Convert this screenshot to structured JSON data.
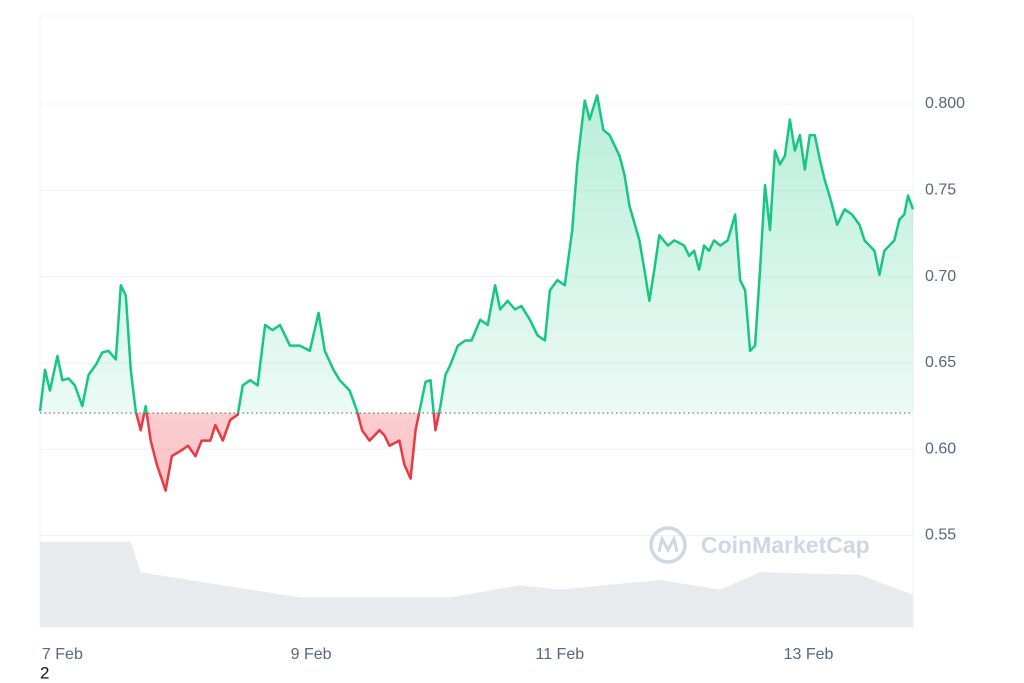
{
  "chart_data": {
    "type": "line",
    "x": [
      6.82,
      6.86,
      6.9,
      6.96,
      7.0,
      7.05,
      7.1,
      7.16,
      7.21,
      7.27,
      7.32,
      7.37,
      7.43,
      7.47,
      7.51,
      7.55,
      7.59,
      7.63,
      7.67,
      7.71,
      7.76,
      7.83,
      7.88,
      7.95,
      8.01,
      8.07,
      8.12,
      8.19,
      8.23,
      8.29,
      8.35,
      8.41,
      8.45,
      8.51,
      8.57,
      8.63,
      8.69,
      8.75,
      8.83,
      8.91,
      8.99,
      9.06,
      9.11,
      9.18,
      9.23,
      9.31,
      9.37,
      9.41,
      9.47,
      9.55,
      9.59,
      9.63,
      9.71,
      9.75,
      9.8,
      9.84,
      9.88,
      9.92,
      9.96,
      10.0,
      10.04,
      10.08,
      10.12,
      10.18,
      10.24,
      10.29,
      10.36,
      10.42,
      10.48,
      10.52,
      10.58,
      10.64,
      10.69,
      10.76,
      10.82,
      10.88,
      10.92,
      10.98,
      11.04,
      11.1,
      11.14,
      11.2,
      11.24,
      11.3,
      11.35,
      11.4,
      11.48,
      11.52,
      11.56,
      11.64,
      11.68,
      11.72,
      11.76,
      11.8,
      11.87,
      11.92,
      12.0,
      12.04,
      12.08,
      12.12,
      12.16,
      12.2,
      12.24,
      12.29,
      12.35,
      12.41,
      12.45,
      12.49,
      12.53,
      12.57,
      12.61,
      12.65,
      12.69,
      12.73,
      12.77,
      12.81,
      12.85,
      12.89,
      12.93,
      12.97,
      13.01,
      13.05,
      13.09,
      13.13,
      13.18,
      13.23,
      13.29,
      13.35,
      13.41,
      13.45,
      13.49,
      13.53,
      13.57,
      13.61,
      13.65,
      13.69,
      13.73,
      13.77,
      13.8,
      13.84
    ],
    "values": [
      0.622,
      0.646,
      0.634,
      0.654,
      0.64,
      0.641,
      0.637,
      0.625,
      0.643,
      0.649,
      0.656,
      0.657,
      0.652,
      0.695,
      0.689,
      0.646,
      0.622,
      0.611,
      0.625,
      0.605,
      0.591,
      0.576,
      0.596,
      0.599,
      0.602,
      0.596,
      0.605,
      0.605,
      0.614,
      0.605,
      0.617,
      0.62,
      0.637,
      0.64,
      0.637,
      0.672,
      0.669,
      0.672,
      0.66,
      0.66,
      0.657,
      0.679,
      0.657,
      0.646,
      0.64,
      0.634,
      0.622,
      0.611,
      0.605,
      0.611,
      0.608,
      0.602,
      0.605,
      0.591,
      0.583,
      0.611,
      0.625,
      0.639,
      0.64,
      0.611,
      0.625,
      0.643,
      0.649,
      0.66,
      0.663,
      0.663,
      0.675,
      0.672,
      0.695,
      0.681,
      0.686,
      0.681,
      0.683,
      0.675,
      0.666,
      0.663,
      0.692,
      0.698,
      0.695,
      0.727,
      0.765,
      0.802,
      0.791,
      0.805,
      0.785,
      0.782,
      0.77,
      0.759,
      0.741,
      0.721,
      0.704,
      0.686,
      0.704,
      0.724,
      0.718,
      0.721,
      0.718,
      0.712,
      0.715,
      0.704,
      0.718,
      0.715,
      0.721,
      0.718,
      0.721,
      0.736,
      0.698,
      0.692,
      0.657,
      0.66,
      0.704,
      0.753,
      0.727,
      0.773,
      0.765,
      0.77,
      0.791,
      0.773,
      0.782,
      0.762,
      0.782,
      0.782,
      0.768,
      0.756,
      0.744,
      0.73,
      0.739,
      0.736,
      0.73,
      0.721,
      0.718,
      0.715,
      0.701,
      0.715,
      0.718,
      0.721,
      0.733,
      0.736,
      0.747,
      0.739
    ],
    "color": "#16c784",
    "negative_color": "#ea3943",
    "baseline": 0.621,
    "xlim": [
      6.82,
      13.84
    ],
    "ylim": [
      0.497,
      0.851
    ],
    "xticks": [
      {
        "value": 7,
        "label": "7 Feb"
      },
      {
        "value": 9,
        "label": "9 Feb"
      },
      {
        "value": 11,
        "label": "11 Feb"
      },
      {
        "value": 13,
        "label": "13 Feb"
      }
    ],
    "yticks": [
      0.55,
      {
        "value": 0.6,
        "label": "0.60"
      },
      0.65,
      {
        "value": 0.7,
        "label": "0.70"
      },
      0.75,
      {
        "value": 0.8,
        "label": "0.800"
      }
    ],
    "grid": true,
    "volume": {
      "x": [
        6.82,
        7.55,
        7.63,
        8.51,
        8.91,
        10.12,
        10.68,
        11.0,
        11.8,
        12.29,
        12.61,
        13.41,
        13.84
      ],
      "values": [
        98,
        98,
        63,
        43,
        34,
        34,
        48,
        43,
        54,
        43,
        63,
        60,
        37
      ],
      "ylim": [
        0,
        100
      ],
      "color": "#e8eaee"
    },
    "watermark": "CoinMarketCap"
  },
  "page_note": "2"
}
